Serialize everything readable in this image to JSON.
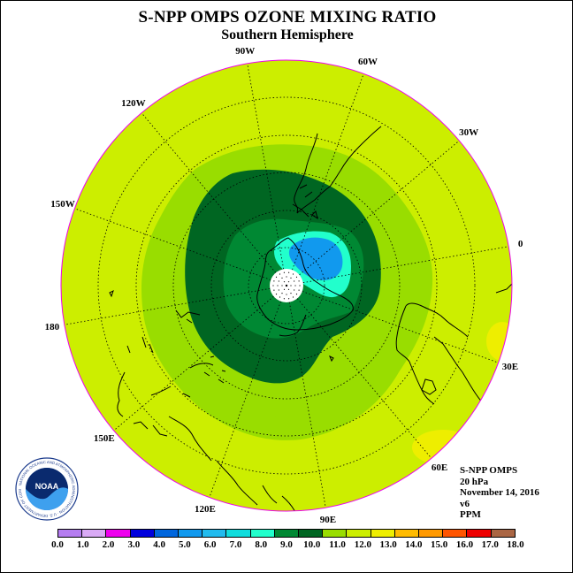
{
  "title": "S-NPP OMPS OZONE MIXING RATIO",
  "subtitle": "Southern Hemisphere",
  "longitude_labels": [
    {
      "text": "90W",
      "angle_deg": 270
    },
    {
      "text": "60W",
      "angle_deg": 300
    },
    {
      "text": "30W",
      "angle_deg": 330
    },
    {
      "text": "0",
      "angle_deg": 0
    },
    {
      "text": "30E",
      "angle_deg": 30
    },
    {
      "text": "60E",
      "angle_deg": 60
    },
    {
      "text": "90E",
      "angle_deg": 90
    },
    {
      "text": "120E",
      "angle_deg": 120
    },
    {
      "text": "150E",
      "angle_deg": 150
    },
    {
      "text": "180",
      "angle_deg": 180
    },
    {
      "text": "150W",
      "angle_deg": 210
    },
    {
      "text": "120W",
      "angle_deg": 240
    }
  ],
  "info": {
    "instrument": "S-NPP OMPS",
    "level": "20 hPa",
    "date": "November 14, 2016",
    "version": "v6",
    "units": "PPM"
  },
  "logo": {
    "text": "NOAA",
    "ring_text": "NATIONAL OCEANIC AND ATMOSPHERIC ADMINISTRATION · U.S. DEPARTMENT OF COMMERCE"
  },
  "colorbar": {
    "ticks": [
      "0.0",
      "1.0",
      "2.0",
      "3.0",
      "4.0",
      "5.0",
      "6.0",
      "7.0",
      "8.0",
      "9.0",
      "10.0",
      "11.0",
      "12.0",
      "13.0",
      "14.0",
      "15.0",
      "16.0",
      "17.0",
      "18.0"
    ],
    "colors": [
      "#b57df0",
      "#d9aaf5",
      "#ee00ee",
      "#0000dd",
      "#0066dd",
      "#1199ee",
      "#22bbee",
      "#11dddd",
      "#22ffcc",
      "#008833",
      "#006622",
      "#99dd00",
      "#ccee00",
      "#eeee00",
      "#ffbb00",
      "#ff9900",
      "#ff5500",
      "#ee0000",
      "#aa6644"
    ]
  },
  "map_colors": {
    "land_outline": "#000000",
    "ocean_boundary": "#ee00ee",
    "c_11_12": "#ccee00",
    "c_10_11": "#99dd00",
    "c_9_10": "#006622",
    "c_8_9": "#008833",
    "c_7_8": "#22ffcc",
    "c_5_6": "#1199ee",
    "c_12_13": "#eeee00",
    "pole": "#ffffff"
  }
}
